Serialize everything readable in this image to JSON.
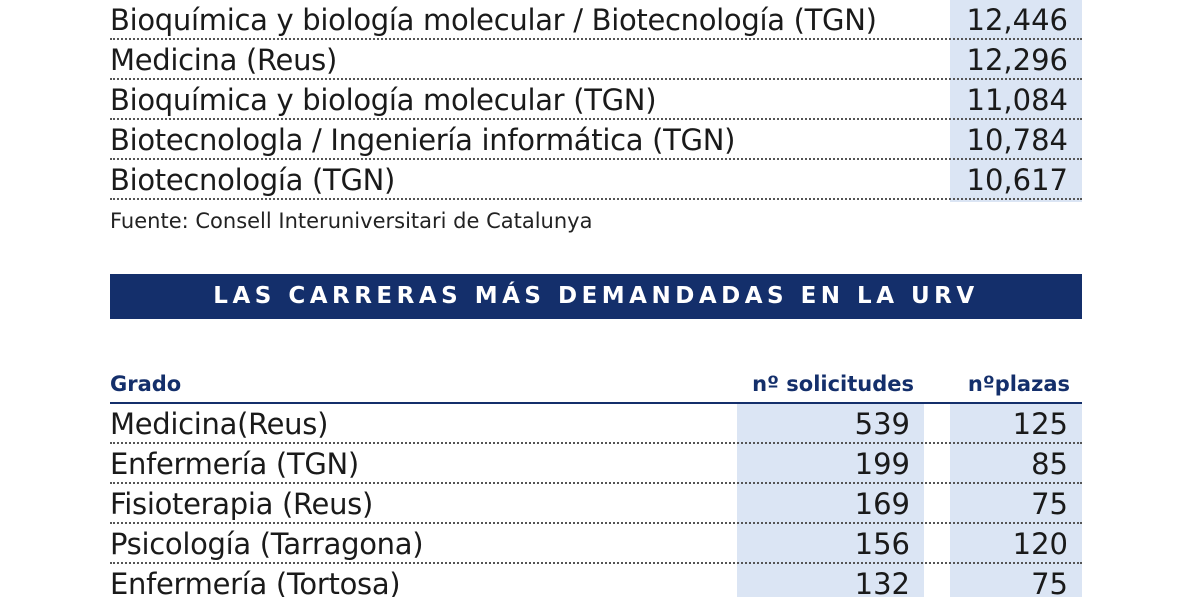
{
  "top_table": {
    "rows": [
      {
        "label": "Bioquímica y biología molecular / Biotecnología (TGN)",
        "value": "12,446"
      },
      {
        "label": "Medicina (Reus)",
        "value": "12,296"
      },
      {
        "label": "Bioquímica y biología molecular (TGN)",
        "value": "11,084"
      },
      {
        "label": "Biotecnologla / Ingeniería informática (TGN)",
        "value": "10,784"
      },
      {
        "label": "Biotecnología (TGN)",
        "value": "10,617"
      }
    ],
    "source": "Fuente: Consell Interuniversitari de Catalunya"
  },
  "demand_table": {
    "title": "LAS CARRERAS MÁS DEMANDADAS EN LA URV",
    "headers": {
      "grado": "Grado",
      "solicitudes": "nº solicitudes",
      "plazas": "nºplazas"
    },
    "rows": [
      {
        "grado": "Medicina(Reus)",
        "solicitudes": "539",
        "plazas": "125"
      },
      {
        "grado": "Enfermería (TGN)",
        "solicitudes": "199",
        "plazas": "85"
      },
      {
        "grado": "Fisioterapia (Reus)",
        "solicitudes": "169",
        "plazas": "75"
      },
      {
        "grado": "Psicología (Tarragona)",
        "solicitudes": "156",
        "plazas": "120"
      },
      {
        "grado": "Enfermería (Tortosa)",
        "solicitudes": "132",
        "plazas": "75"
      }
    ]
  },
  "colors": {
    "accent": "#142f6b",
    "column_shade": "#dbe5f4"
  }
}
